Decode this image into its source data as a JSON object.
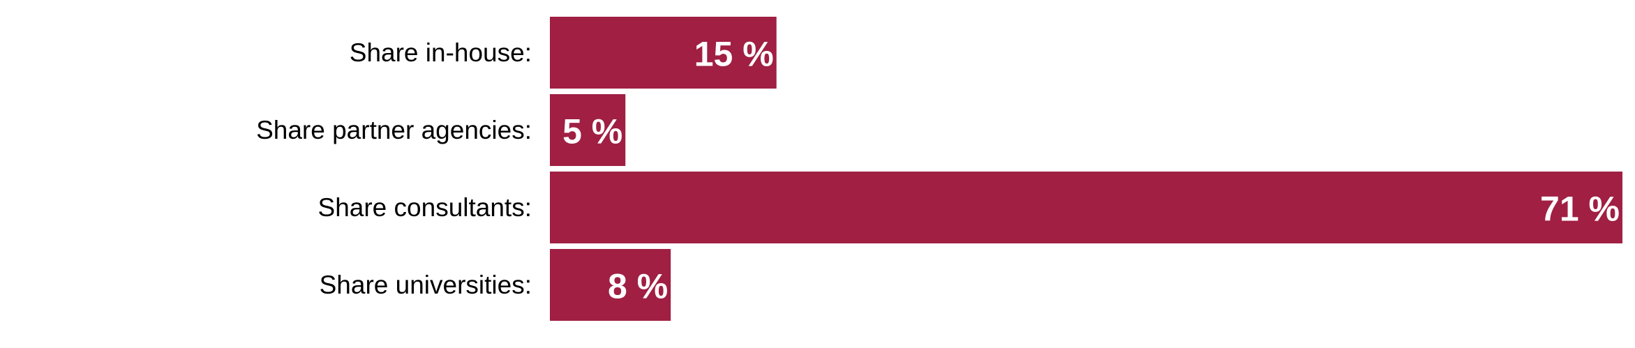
{
  "chart_data": {
    "type": "bar",
    "orientation": "horizontal",
    "categories": [
      "Share in-house:",
      "Share partner agencies:",
      "Share consultants:",
      "Share universities:"
    ],
    "values": [
      15,
      5,
      71,
      8
    ],
    "value_labels": [
      "15 %",
      "5 %",
      "71 %",
      "8 %"
    ],
    "unit": "%",
    "xlim": [
      0,
      71
    ],
    "title": "",
    "xlabel": "",
    "ylabel": "",
    "grid": false,
    "legend": "none",
    "bar_color": "#a01f43",
    "value_label_color": "#ffffff"
  }
}
